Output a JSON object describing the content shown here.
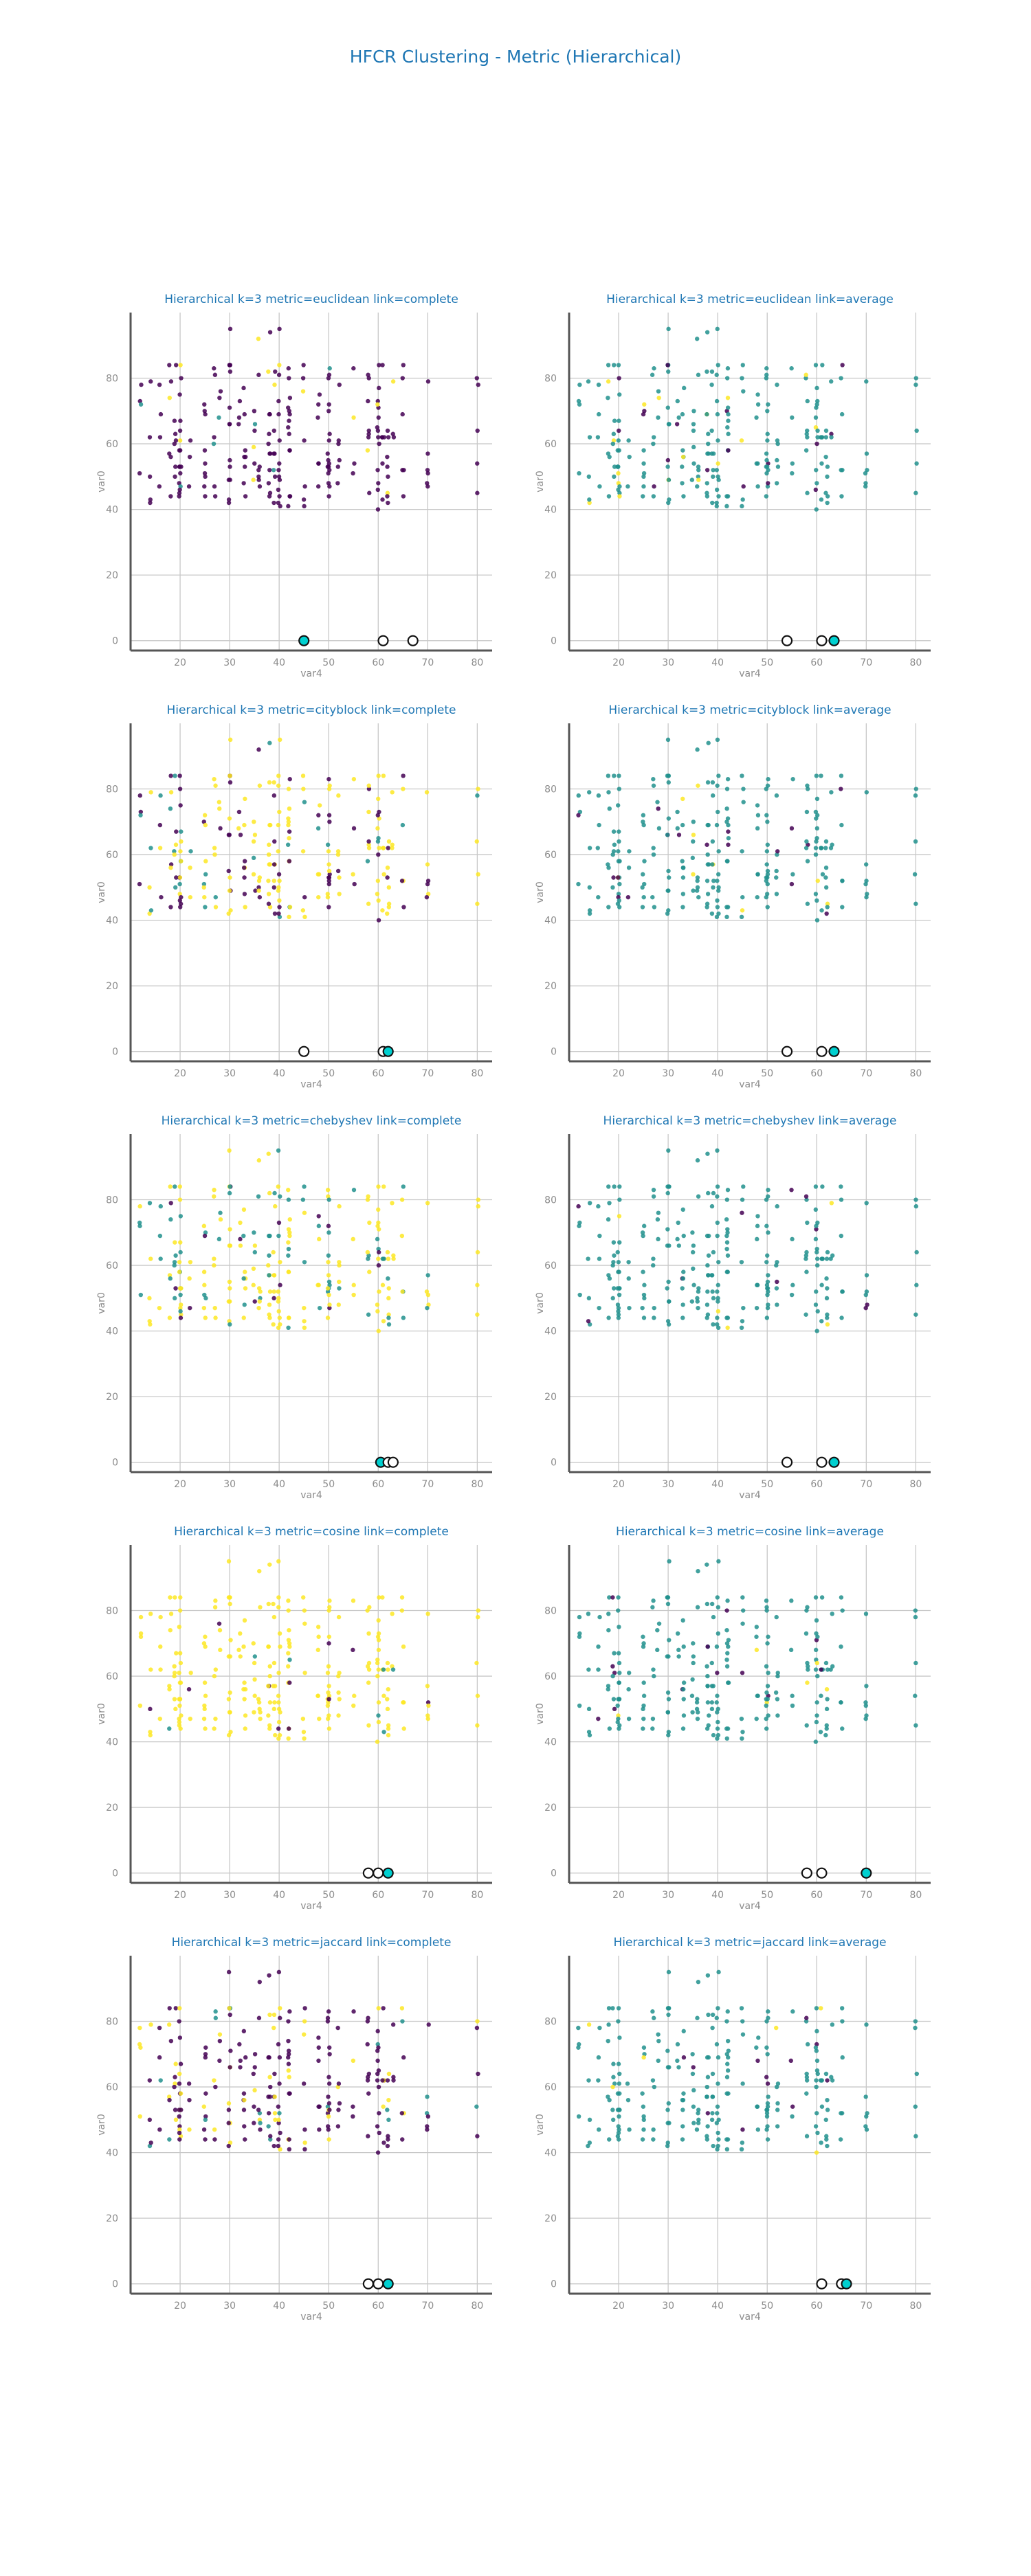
{
  "figure_title": "HFCR Clustering - Metric (Hierarchical)",
  "colors": {
    "title": "#1f77b4",
    "cluster_0": "#440154",
    "cluster_1": "#21908d",
    "cluster_2": "#fde725",
    "centroid_highlight": "#00d0d0",
    "grid": "#c8c8c8",
    "axis": "#555555"
  },
  "chart_data": [
    {
      "type": "scatter",
      "title": "Hierarchical k=3 metric=euclidean link=complete",
      "xlabel": "var4",
      "ylabel": "var0",
      "xlim": [
        10,
        83
      ],
      "ylim": [
        -3,
        100
      ],
      "xticks": [
        20,
        30,
        40,
        50,
        60,
        70,
        80
      ],
      "yticks": [
        0,
        20,
        40,
        60,
        80
      ],
      "grid": true,
      "dominant": 0,
      "minor": [
        2,
        1
      ],
      "centroids": [
        45,
        61,
        67
      ],
      "highlight": 0,
      "seed": 11
    },
    {
      "type": "scatter",
      "title": "Hierarchical k=3 metric=euclidean link=average",
      "xlabel": "var4",
      "ylabel": "var0",
      "xlim": [
        10,
        83
      ],
      "ylim": [
        -3,
        100
      ],
      "xticks": [
        20,
        30,
        40,
        50,
        60,
        70,
        80
      ],
      "yticks": [
        0,
        20,
        40,
        60,
        80
      ],
      "grid": true,
      "dominant": 1,
      "minor": [
        0,
        2
      ],
      "centroids": [
        54,
        61,
        63.5
      ],
      "highlight": 2,
      "seed": 23
    },
    {
      "type": "scatter",
      "title": "Hierarchical k=3 metric=cityblock link=complete",
      "xlabel": "var4",
      "ylabel": "var0",
      "xlim": [
        10,
        83
      ],
      "ylim": [
        -3,
        100
      ],
      "xticks": [
        20,
        30,
        40,
        50,
        60,
        70,
        80
      ],
      "yticks": [
        0,
        20,
        40,
        60,
        80
      ],
      "grid": true,
      "dominant": 2,
      "minor": [
        0,
        1
      ],
      "mixed": true,
      "centroids": [
        45,
        61,
        62
      ],
      "highlight": 2,
      "seed": 37
    },
    {
      "type": "scatter",
      "title": "Hierarchical k=3 metric=cityblock link=average",
      "xlabel": "var4",
      "ylabel": "var0",
      "xlim": [
        10,
        83
      ],
      "ylim": [
        -3,
        100
      ],
      "xticks": [
        20,
        30,
        40,
        50,
        60,
        70,
        80
      ],
      "yticks": [
        0,
        20,
        40,
        60,
        80
      ],
      "grid": true,
      "dominant": 1,
      "minor": [
        0,
        2
      ],
      "centroids": [
        54,
        61,
        63.5
      ],
      "highlight": 2,
      "seed": 41
    },
    {
      "type": "scatter",
      "title": "Hierarchical k=3 metric=chebyshev link=complete",
      "xlabel": "var4",
      "ylabel": "var0",
      "xlim": [
        10,
        83
      ],
      "ylim": [
        -3,
        100
      ],
      "xticks": [
        20,
        30,
        40,
        50,
        60,
        70,
        80
      ],
      "yticks": [
        0,
        20,
        40,
        60,
        80
      ],
      "grid": true,
      "dominant": 2,
      "minor": [
        1,
        0
      ],
      "mixed": true,
      "centroids": [
        60.5,
        62,
        63
      ],
      "highlight": 0,
      "seed": 53
    },
    {
      "type": "scatter",
      "title": "Hierarchical k=3 metric=chebyshev link=average",
      "xlabel": "var4",
      "ylabel": "var0",
      "xlim": [
        10,
        83
      ],
      "ylim": [
        -3,
        100
      ],
      "xticks": [
        20,
        30,
        40,
        50,
        60,
        70,
        80
      ],
      "yticks": [
        0,
        20,
        40,
        60,
        80
      ],
      "grid": true,
      "dominant": 1,
      "minor": [
        0,
        2
      ],
      "centroids": [
        54,
        61,
        63.5
      ],
      "highlight": 2,
      "seed": 61
    },
    {
      "type": "scatter",
      "title": "Hierarchical k=3 metric=cosine link=complete",
      "xlabel": "var4",
      "ylabel": "var0",
      "xlim": [
        10,
        83
      ],
      "ylim": [
        -3,
        100
      ],
      "xticks": [
        20,
        30,
        40,
        50,
        60,
        70,
        80
      ],
      "yticks": [
        0,
        20,
        40,
        60,
        80
      ],
      "grid": true,
      "dominant": 2,
      "minor": [
        0,
        1
      ],
      "centroids": [
        58,
        60,
        62
      ],
      "highlight": 2,
      "seed": 71
    },
    {
      "type": "scatter",
      "title": "Hierarchical k=3 metric=cosine link=average",
      "xlabel": "var4",
      "ylabel": "var0",
      "xlim": [
        10,
        83
      ],
      "ylim": [
        -3,
        100
      ],
      "xticks": [
        20,
        30,
        40,
        50,
        60,
        70,
        80
      ],
      "yticks": [
        0,
        20,
        40,
        60,
        80
      ],
      "grid": true,
      "dominant": 1,
      "minor": [
        0,
        2
      ],
      "centroids": [
        58,
        61,
        70
      ],
      "highlight": 2,
      "seed": 83
    },
    {
      "type": "scatter",
      "title": "Hierarchical k=3 metric=jaccard link=complete",
      "xlabel": "var4",
      "ylabel": "var0",
      "xlim": [
        10,
        83
      ],
      "ylim": [
        -3,
        100
      ],
      "xticks": [
        20,
        30,
        40,
        50,
        60,
        70,
        80
      ],
      "yticks": [
        0,
        20,
        40,
        60,
        80
      ],
      "grid": true,
      "dominant": 0,
      "minor": [
        2,
        1
      ],
      "mixed": true,
      "centroids": [
        58,
        60,
        62
      ],
      "highlight": 2,
      "seed": 97
    },
    {
      "type": "scatter",
      "title": "Hierarchical k=3 metric=jaccard link=average",
      "xlabel": "var4",
      "ylabel": "var0",
      "xlim": [
        10,
        83
      ],
      "ylim": [
        -3,
        100
      ],
      "xticks": [
        20,
        30,
        40,
        50,
        60,
        70,
        80
      ],
      "yticks": [
        0,
        20,
        40,
        60,
        80
      ],
      "grid": true,
      "dominant": 1,
      "minor": [
        0,
        2
      ],
      "centroids": [
        61,
        65,
        66
      ],
      "highlight": 2,
      "seed": 101
    }
  ]
}
